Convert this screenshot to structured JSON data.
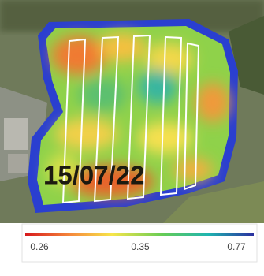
{
  "map": {
    "date_label": "15/07/22"
  },
  "legend": {
    "labels": [
      "0.26",
      "0.35",
      "0.77"
    ]
  }
}
